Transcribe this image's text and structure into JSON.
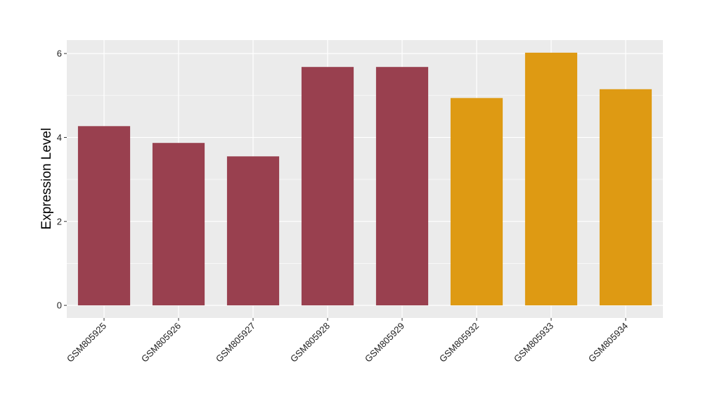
{
  "chart_data": {
    "type": "bar",
    "categories": [
      "GSM805925",
      "GSM805926",
      "GSM805927",
      "GSM805928",
      "GSM805929",
      "GSM805932",
      "GSM805933",
      "GSM805934"
    ],
    "values": [
      4.27,
      3.87,
      3.55,
      5.68,
      5.68,
      4.94,
      6.02,
      5.15
    ],
    "bar_colors": [
      "#99404F",
      "#99404F",
      "#99404F",
      "#99404F",
      "#99404F",
      "#DE9A13",
      "#DE9A13",
      "#DE9A13"
    ],
    "ylabel": "Expression Level",
    "xlabel": "",
    "ylim": [
      -0.3,
      6.32
    ],
    "yticks": [
      0,
      2,
      4,
      6
    ],
    "grid": true,
    "panel_background": "#EBEBEB",
    "grid_color": "#FFFFFF"
  }
}
